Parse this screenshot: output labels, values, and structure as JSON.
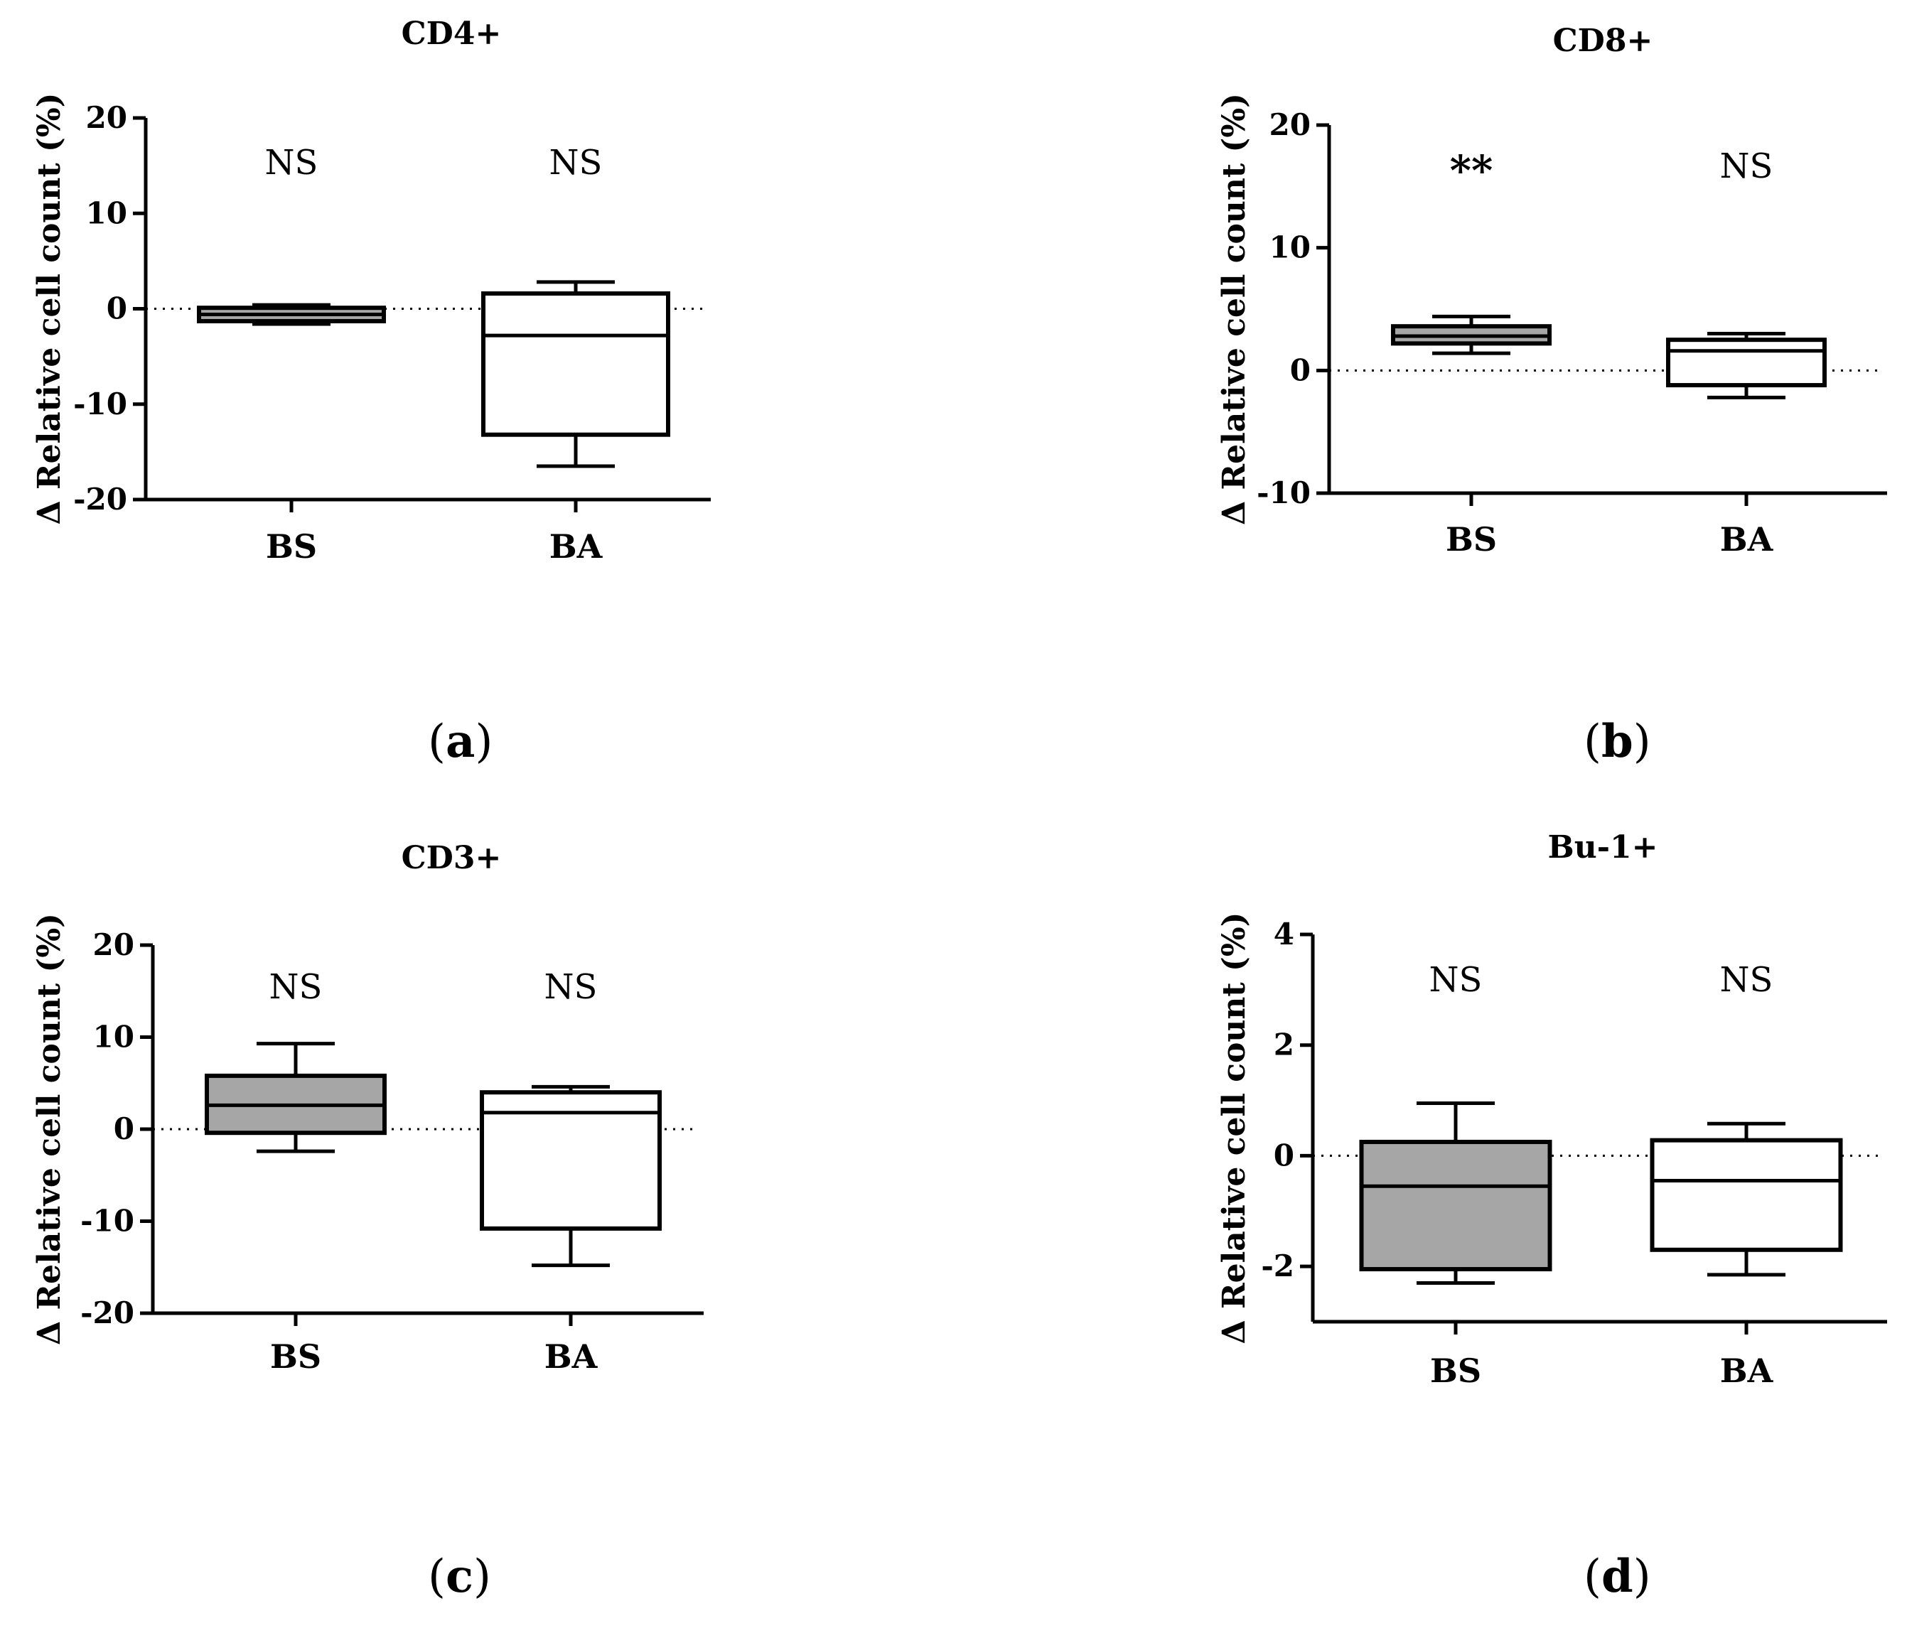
{
  "chart_data": [
    {
      "type": "box",
      "panel": "a",
      "title": "CD4+",
      "ylabel": "Δ Relative cell count (%)",
      "xlabel": "",
      "ylim": [
        -20,
        20
      ],
      "yticks": [
        -20,
        -10,
        0,
        10,
        20
      ],
      "reference_line": 0,
      "categories": [
        "BS",
        "BA"
      ],
      "boxes": [
        {
          "category": "BS",
          "min": -1.6,
          "q1": -1.3,
          "median": -0.6,
          "q3": 0.1,
          "max": 0.4,
          "fill": "#a6a6a6",
          "annotation": "NS"
        },
        {
          "category": "BA",
          "min": -16.5,
          "q1": -13.2,
          "median": -2.8,
          "q3": 1.6,
          "max": 2.8,
          "fill": "#ffffff",
          "annotation": "NS"
        }
      ]
    },
    {
      "type": "box",
      "panel": "b",
      "title": "CD8+",
      "ylabel": "Δ Relative cell count (%)",
      "xlabel": "",
      "ylim": [
        -10,
        20
      ],
      "yticks": [
        -10,
        0,
        10,
        20
      ],
      "reference_line": 0,
      "categories": [
        "BS",
        "BA"
      ],
      "boxes": [
        {
          "category": "BS",
          "min": 1.4,
          "q1": 2.2,
          "median": 2.8,
          "q3": 3.6,
          "max": 4.4,
          "fill": "#a6a6a6",
          "annotation": "**"
        },
        {
          "category": "BA",
          "min": -2.2,
          "q1": -1.2,
          "median": 1.6,
          "q3": 2.5,
          "max": 3.0,
          "fill": "#ffffff",
          "annotation": "NS"
        }
      ]
    },
    {
      "type": "box",
      "panel": "c",
      "title": "CD3+",
      "ylabel": "Δ Relative cell count (%)",
      "xlabel": "",
      "ylim": [
        -20,
        20
      ],
      "yticks": [
        -20,
        -10,
        0,
        10,
        20
      ],
      "reference_line": 0,
      "categories": [
        "BS",
        "BA"
      ],
      "boxes": [
        {
          "category": "BS",
          "min": -2.4,
          "q1": -0.4,
          "median": 2.6,
          "q3": 5.8,
          "max": 9.3,
          "fill": "#a6a6a6",
          "annotation": "NS"
        },
        {
          "category": "BA",
          "min": -14.8,
          "q1": -10.8,
          "median": 1.8,
          "q3": 4.0,
          "max": 4.6,
          "fill": "#ffffff",
          "annotation": "NS"
        }
      ]
    },
    {
      "type": "box",
      "panel": "d",
      "title": "Bu-1+",
      "ylabel": "Δ Relative cell count (%)",
      "xlabel": "",
      "ylim": [
        -3,
        4
      ],
      "yticks": [
        -2,
        0,
        2,
        4
      ],
      "reference_line": 0,
      "categories": [
        "BS",
        "BA"
      ],
      "boxes": [
        {
          "category": "BS",
          "min": -2.3,
          "q1": -2.05,
          "median": -0.55,
          "q3": 0.25,
          "max": 0.95,
          "fill": "#a6a6a6",
          "annotation": "NS"
        },
        {
          "category": "BA",
          "min": -2.15,
          "q1": -1.7,
          "median": -0.45,
          "q3": 0.28,
          "max": 0.58,
          "fill": "#ffffff",
          "annotation": "NS"
        }
      ]
    }
  ],
  "panel_labels": [
    "a",
    "b",
    "c",
    "d"
  ]
}
